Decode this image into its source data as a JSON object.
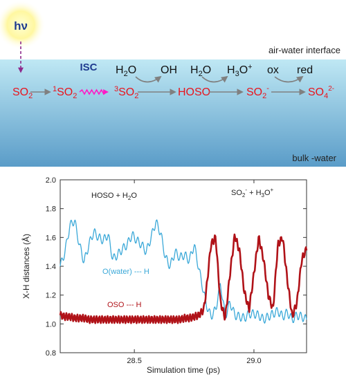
{
  "scheme": {
    "light_label": "hν",
    "interface_label": "air-water interface",
    "bulk_label": "bulk -water",
    "isc_label": "ISC",
    "species": [
      {
        "base": "SO",
        "sub": "2",
        "sup": "",
        "pre": ""
      },
      {
        "base": "SO",
        "sub": "2",
        "sup": "",
        "pre": "1"
      },
      {
        "base": "SO",
        "sub": "2",
        "sup": "",
        "pre": "3"
      },
      {
        "base": "HOSO",
        "sub": "",
        "sup": "",
        "pre": ""
      },
      {
        "base": "SO",
        "sub": "2",
        "sup": "-",
        "pre": ""
      },
      {
        "base": "SO",
        "sub": "4",
        "sup": "2-",
        "pre": ""
      }
    ],
    "reagents": [
      {
        "in_base": "H",
        "in_sub": "2",
        "in_tail": "O",
        "out_base": "OH",
        "out_sub": "",
        "out_tail": "",
        "out_sup": ""
      },
      {
        "in_base": "H",
        "in_sub": "2",
        "in_tail": "O",
        "out_base": "H",
        "out_sub": "3",
        "out_tail": "O",
        "out_sup": "+"
      },
      {
        "in_base": "ox",
        "in_sub": "",
        "in_tail": "",
        "out_base": "red",
        "out_sub": "",
        "out_tail": "",
        "out_sup": ""
      }
    ],
    "colors": {
      "species": "#e8141d",
      "isc_text": "#1f3b8f",
      "photon_arrow": "#8e2a8c",
      "wavy": "#ff1ac6",
      "water_top": "#bfe8f4",
      "water_bottom": "#5a9cc8"
    }
  },
  "chart": {
    "xlabel": "Simulation time (ps)",
    "ylabel": "X-H distances (Å)",
    "xticks": [
      "28.5",
      "29.0"
    ],
    "yticks": [
      "0.8",
      "1.0",
      "1.2",
      "1.4",
      "1.6",
      "1.8",
      "2.0"
    ],
    "label_left": {
      "base": "HOSO + H",
      "sub": "2",
      "tail": "O"
    },
    "label_right": {
      "a": "SO",
      "a_sub": "2",
      "a_sup": "-",
      "mid": " + H",
      "b_sub": "3",
      "b": "O",
      "b_sup": "+"
    },
    "series_labels": [
      "O(water) --- H",
      "OSO --- H"
    ],
    "colors": {
      "water": "#3aa8d8",
      "oso": "#b01218"
    }
  },
  "chart_data": {
    "type": "line",
    "xlabel": "Simulation time (ps)",
    "ylabel": "X-H distances (Å)",
    "xlim": [
      28.19,
      29.22
    ],
    "ylim": [
      0.8,
      2.0
    ],
    "series": [
      {
        "name": "O(water) --- H",
        "x": [
          28.19,
          28.21,
          28.23,
          28.25,
          28.27,
          28.29,
          28.31,
          28.33,
          28.35,
          28.37,
          28.39,
          28.41,
          28.43,
          28.45,
          28.47,
          28.49,
          28.51,
          28.53,
          28.55,
          28.57,
          28.59,
          28.61,
          28.63,
          28.65,
          28.67,
          28.69,
          28.71,
          28.73,
          28.75,
          28.77,
          28.79,
          28.8,
          28.82,
          28.84,
          28.86,
          28.88,
          28.9,
          28.92,
          28.94,
          28.96,
          28.98,
          29.0,
          29.02,
          29.04,
          29.06,
          29.08,
          29.1,
          29.12,
          29.14,
          29.16,
          29.18,
          29.2,
          29.22
        ],
        "y": [
          1.4,
          1.5,
          1.68,
          1.72,
          1.55,
          1.43,
          1.55,
          1.64,
          1.6,
          1.58,
          1.62,
          1.45,
          1.48,
          1.52,
          1.55,
          1.62,
          1.58,
          1.55,
          1.5,
          1.6,
          1.71,
          1.63,
          1.46,
          1.4,
          1.5,
          1.46,
          1.48,
          1.44,
          1.55,
          1.38,
          1.22,
          1.14,
          1.05,
          1.1,
          1.28,
          1.05,
          1.15,
          1.06,
          1.05,
          1.04,
          1.07,
          1.07,
          1.06,
          1.03,
          1.05,
          1.07,
          1.09,
          1.05,
          1.08,
          1.03,
          1.06,
          1.05,
          1.03
        ]
      },
      {
        "name": "OSO --- H",
        "x": [
          28.19,
          28.21,
          28.23,
          28.25,
          28.27,
          28.29,
          28.31,
          28.33,
          28.35,
          28.37,
          28.39,
          28.41,
          28.43,
          28.45,
          28.47,
          28.49,
          28.51,
          28.53,
          28.55,
          28.57,
          28.59,
          28.61,
          28.63,
          28.65,
          28.67,
          28.69,
          28.71,
          28.73,
          28.75,
          28.77,
          28.79,
          28.8,
          28.82,
          28.84,
          28.86,
          28.88,
          28.9,
          28.92,
          28.94,
          28.96,
          28.98,
          29.0,
          29.02,
          29.04,
          29.06,
          29.08,
          29.1,
          29.12,
          29.14,
          29.16,
          29.18,
          29.2,
          29.22
        ],
        "y": [
          1.06,
          1.05,
          1.05,
          1.04,
          1.04,
          1.04,
          1.03,
          1.03,
          1.03,
          1.03,
          1.03,
          1.03,
          1.03,
          1.03,
          1.03,
          1.03,
          1.03,
          1.03,
          1.03,
          1.03,
          1.03,
          1.03,
          1.03,
          1.03,
          1.03,
          1.03,
          1.04,
          1.04,
          1.05,
          1.06,
          1.1,
          1.22,
          1.55,
          1.6,
          1.15,
          1.04,
          1.35,
          1.62,
          1.5,
          1.22,
          1.1,
          1.35,
          1.6,
          1.45,
          1.2,
          1.1,
          1.55,
          1.6,
          1.3,
          1.05,
          1.15,
          1.45,
          1.52
        ]
      }
    ]
  }
}
